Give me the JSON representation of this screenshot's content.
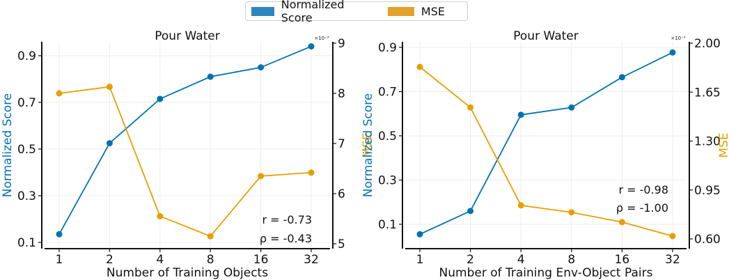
{
  "legend": [
    {
      "label": "Normalized Score",
      "color": "#2e86c1"
    },
    {
      "label": "MSE",
      "color": "#e1a12a"
    }
  ],
  "colors": {
    "score": "#0072b2",
    "mse": "#e69f00",
    "score_label": "#0072b2",
    "mse_label": "#e69f00"
  },
  "chart_data": [
    {
      "type": "line",
      "title": "Pour Water",
      "xlabel": "Number of Training Objects",
      "categories": [
        "1",
        "2",
        "4",
        "8",
        "16",
        "32"
      ],
      "ylabel_left": "Normalized Score",
      "ylabel_right": "MSE",
      "ylim_left": [
        0.08,
        0.98
      ],
      "yticks_left": [
        "0.1",
        "0.3",
        "0.5",
        "0.7",
        "0.9"
      ],
      "ylim_right": [
        5.0,
        9.0
      ],
      "yticks_right": [
        "5",
        "6",
        "7",
        "8",
        "9"
      ],
      "right_multiplier": "×10⁻³",
      "series": [
        {
          "name": "Normalized Score",
          "axis": "left",
          "values": [
            0.135,
            0.525,
            0.715,
            0.81,
            0.85,
            0.94
          ]
        },
        {
          "name": "MSE",
          "axis": "right",
          "values": [
            8.0,
            8.13,
            5.55,
            5.15,
            6.35,
            6.42
          ]
        }
      ],
      "annotations": [
        "r = -0.73",
        "ρ = -0.43"
      ]
    },
    {
      "type": "line",
      "title": "Pour Water",
      "xlabel": "Number of Training Env-Object Pairs",
      "categories": [
        "1",
        "2",
        "4",
        "8",
        "16",
        "32"
      ],
      "ylabel_left": "Normalized Score",
      "ylabel_right": "MSE",
      "ylim_left": [
        0.04,
        0.91
      ],
      "yticks_left": [
        "0.1",
        "0.3",
        "0.5",
        "0.7",
        "0.9"
      ],
      "ylim_right": [
        0.6,
        2.0
      ],
      "yticks_right": [
        "0.60",
        "0.95",
        "1.30",
        "1.65",
        "2.00"
      ],
      "right_multiplier": "×10⁻²",
      "series": [
        {
          "name": "Normalized Score",
          "axis": "left",
          "values": [
            0.055,
            0.16,
            0.595,
            0.628,
            0.765,
            0.877
          ]
        },
        {
          "name": "MSE",
          "axis": "right",
          "values": [
            1.83,
            1.54,
            0.84,
            0.79,
            0.72,
            0.62
          ]
        }
      ],
      "annotations": [
        "r = -0.98",
        "ρ = -1.00"
      ]
    }
  ]
}
